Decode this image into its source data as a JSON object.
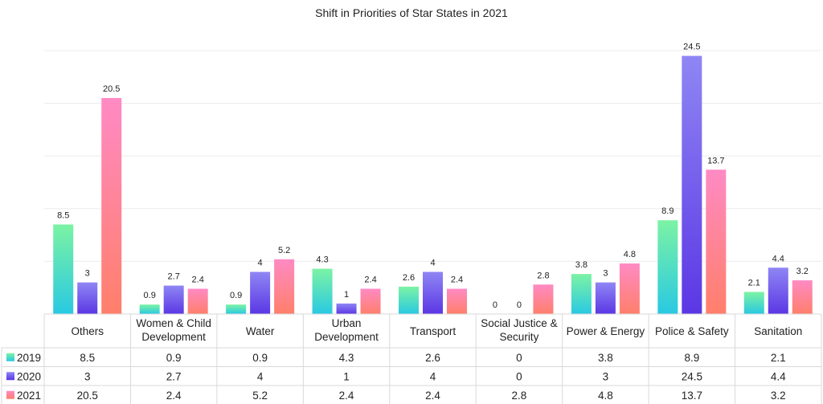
{
  "chart_data": {
    "type": "bar",
    "title": "Shift in Priorities of Star States in 2021",
    "xlabel": "",
    "ylabel": "",
    "ylim": [
      0,
      30
    ],
    "grid": true,
    "legend_placement": "data-table-left",
    "categories": [
      [
        "Others"
      ],
      [
        "Women & Child",
        "Development"
      ],
      [
        "Water"
      ],
      [
        "Urban",
        "Development"
      ],
      [
        "Transport"
      ],
      [
        "Social Justice &",
        "Security"
      ],
      [
        "Power & Energy"
      ],
      [
        "Police & Safety"
      ],
      [
        "Sanitation"
      ]
    ],
    "series": [
      {
        "name": "2019",
        "values": [
          8.5,
          0.9,
          0.9,
          4.3,
          2.6,
          0,
          3.8,
          8.9,
          2.1
        ],
        "color_top": "#7CF3A4",
        "color_bottom": "#29C9E2"
      },
      {
        "name": "2020",
        "values": [
          3,
          2.7,
          4,
          1,
          4,
          0,
          3,
          24.5,
          4.4
        ],
        "color_top": "#8F86F4",
        "color_bottom": "#5B37E4"
      },
      {
        "name": "2021",
        "values": [
          20.5,
          2.4,
          5.2,
          2.4,
          2.4,
          2.8,
          4.8,
          13.7,
          3.2
        ],
        "color_top": "#FF8AC4",
        "color_bottom": "#FF7F6A"
      }
    ]
  }
}
